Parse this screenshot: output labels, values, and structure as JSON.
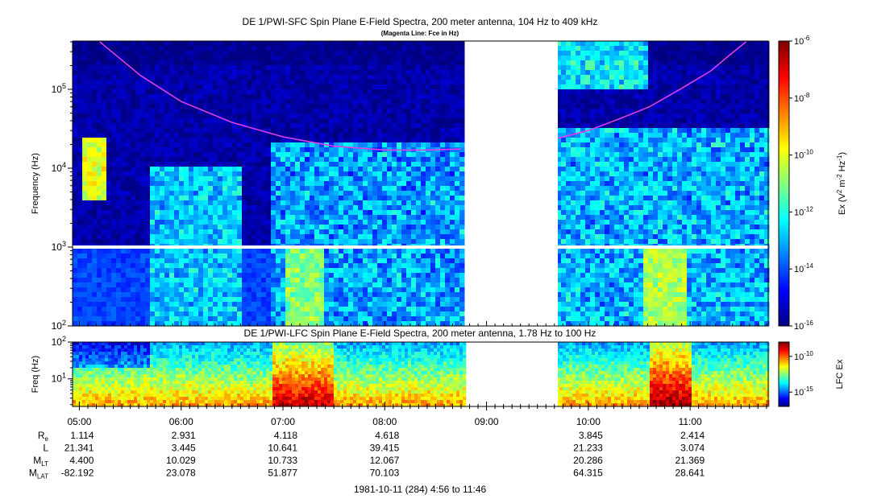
{
  "chart_data": [
    {
      "type": "heatmap",
      "title": "DE 1/PWI-SFC  Spin Plane E-Field Spectra, 200 meter antenna, 104 Hz to 409 kHz",
      "subtitle": "(Magenta Line: Fce in Hz)",
      "ylabel": "Frequency (Hz)",
      "yscale": "log",
      "ylim": [
        100,
        409000
      ],
      "y_ticks": [
        {
          "value": 100,
          "label": "10",
          "exp": "2"
        },
        {
          "value": 1000,
          "label": "10",
          "exp": "3"
        },
        {
          "value": 10000,
          "label": "10",
          "exp": "4"
        },
        {
          "value": 100000,
          "label": "10",
          "exp": "5"
        }
      ],
      "colorbar": {
        "label_main": "Ex (V",
        "label_sup1": "2",
        "label_mid": " m",
        "label_sup2": "-2",
        "label_mid2": " Hz",
        "label_sup3": "-1",
        "label_end": ")",
        "scale": "log",
        "range": [
          1e-16,
          1e-06
        ],
        "ticks": [
          {
            "value": 1e-06,
            "label": "10",
            "exp": "-6"
          },
          {
            "value": 1e-08,
            "label": "10",
            "exp": "-8"
          },
          {
            "value": 1e-10,
            "label": "10",
            "exp": "-10"
          },
          {
            "value": 1e-12,
            "label": "10",
            "exp": "-12"
          },
          {
            "value": 1e-14,
            "label": "10",
            "exp": "-14"
          },
          {
            "value": 1e-16,
            "label": "10",
            "exp": "-16"
          }
        ]
      },
      "data_gap_hours": [
        8.8,
        9.7
      ],
      "fce_line_color": "#e040e0",
      "fce_series": {
        "hours": [
          5.2,
          5.6,
          6.0,
          6.5,
          7.0,
          7.5,
          8.0,
          8.4,
          8.75,
          9.7,
          10.0,
          10.3,
          10.6,
          10.9,
          11.2,
          11.4,
          11.55
        ],
        "fce_hz": [
          400000,
          150000,
          70000,
          38000,
          25000,
          19000,
          17000,
          17000,
          17500,
          24000,
          30000,
          42000,
          60000,
          100000,
          170000,
          280000,
          400000
        ]
      },
      "features": [
        {
          "type": "bright_band",
          "hours": [
            7.0,
            7.4
          ],
          "fmin": 100,
          "fmax": 1000,
          "level": -11
        },
        {
          "type": "burst",
          "hours": [
            10.55,
            10.95
          ],
          "fmin": 100,
          "fmax": 1000,
          "level": -10.5
        },
        {
          "type": "burst",
          "hours": [
            5.05,
            5.25
          ],
          "fmin": 4000,
          "fmax": 25000,
          "level": -10
        }
      ]
    },
    {
      "type": "heatmap",
      "title": "DE 1/PWI-LFC  Spin Plane E-Field Spectra, 200 meter antenna, 1.78 Hz to 100 Hz",
      "ylabel": "Freq (Hz)",
      "yscale": "log",
      "ylim": [
        1.78,
        100
      ],
      "y_ticks": [
        {
          "value": 10,
          "label": "10",
          "exp": "1"
        },
        {
          "value": 100,
          "label": "10",
          "exp": "2"
        }
      ],
      "colorbar": {
        "label": "LFC Ex",
        "scale": "log",
        "range": [
          1e-17,
          1e-08
        ],
        "ticks": [
          {
            "value": 1e-10,
            "label": "10",
            "exp": "-10"
          },
          {
            "value": 1e-15,
            "label": "10",
            "exp": "-15"
          }
        ]
      },
      "data_gap_hours": [
        8.8,
        9.7
      ]
    }
  ],
  "time_axis": {
    "range_hours": [
      4.933,
      11.767
    ],
    "ticks": [
      {
        "hour": 5,
        "label": "05:00"
      },
      {
        "hour": 6,
        "label": "06:00"
      },
      {
        "hour": 7,
        "label": "07:00"
      },
      {
        "hour": 8,
        "label": "08:00"
      },
      {
        "hour": 9,
        "label": "09:00"
      },
      {
        "hour": 10,
        "label": "10:00"
      },
      {
        "hour": 11,
        "label": "11:00"
      }
    ]
  },
  "ephemeris": {
    "rows": [
      {
        "label": "R",
        "sub": "e",
        "values": [
          "1.114",
          "2.931",
          "4.118",
          "4.618",
          "",
          "3.845",
          "2.414"
        ]
      },
      {
        "label": "L",
        "sub": "",
        "values": [
          "21.341",
          "3.445",
          "10.641",
          "39.415",
          "",
          "21.233",
          "3.074"
        ]
      },
      {
        "label": "M",
        "sub": "LT",
        "values": [
          "4.400",
          "10.029",
          "10.733",
          "12.067",
          "",
          "20.286",
          "21.369"
        ]
      },
      {
        "label": "M",
        "sub": "LAT",
        "values": [
          "-82.192",
          "23.078",
          "51.877",
          "70.103",
          "",
          "64.315",
          "28.641"
        ]
      }
    ]
  },
  "footer": "1981-10-11 (284) 4:56 to 11:46"
}
